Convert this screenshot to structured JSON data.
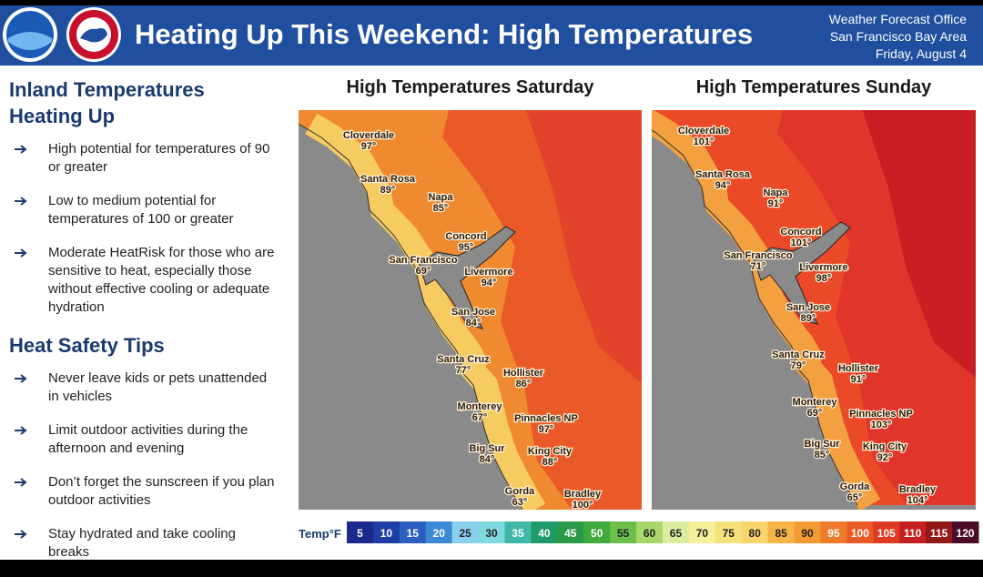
{
  "header": {
    "title": "Heating Up This Weekend: High Temperatures",
    "office": [
      "Weather Forecast Office",
      "San Francisco Bay Area",
      "Friday, August 4"
    ]
  },
  "sections": [
    {
      "heading": "Inland Temperatures Heating Up",
      "bullets": [
        "High potential for temperatures of 90 or greater",
        "Low to medium potential for temperatures of 100 or greater",
        "Moderate HeatRisk for those who are sensitive to heat, especially those without effective cooling or adequate hydration"
      ]
    },
    {
      "heading": "Heat Safety Tips",
      "bullets": [
        "Never leave kids or pets unattended in vehicles",
        "Limit outdoor activities during the afternoon and evening",
        "Don’t forget the sunscreen if you plan outdoor activities",
        "Stay hydrated and take cooling breaks"
      ]
    }
  ],
  "maps": [
    {
      "title": "High Temperatures Saturday",
      "cities": [
        {
          "name": "Cloverdale",
          "temp": "97°"
        },
        {
          "name": "Santa Rosa",
          "temp": "89°"
        },
        {
          "name": "Napa",
          "temp": "85°"
        },
        {
          "name": "Concord",
          "temp": "95°"
        },
        {
          "name": "San Francisco",
          "temp": "69°"
        },
        {
          "name": "Livermore",
          "temp": "94°"
        },
        {
          "name": "San Jose",
          "temp": "84°"
        },
        {
          "name": "Santa Cruz",
          "temp": "77°"
        },
        {
          "name": "Hollister",
          "temp": "86°"
        },
        {
          "name": "Monterey",
          "temp": "67°"
        },
        {
          "name": "Pinnacles NP",
          "temp": "97°"
        },
        {
          "name": "Big Sur",
          "temp": "84°"
        },
        {
          "name": "King City",
          "temp": "88°"
        },
        {
          "name": "Gorda",
          "temp": "63°"
        },
        {
          "name": "Bradley",
          "temp": "100°"
        }
      ]
    },
    {
      "title": "High Temperatures Sunday",
      "cities": [
        {
          "name": "Cloverdale",
          "temp": "101°"
        },
        {
          "name": "Santa Rosa",
          "temp": "94°"
        },
        {
          "name": "Napa",
          "temp": "91°"
        },
        {
          "name": "Concord",
          "temp": "101°"
        },
        {
          "name": "San Francisco",
          "temp": "71°"
        },
        {
          "name": "Livermore",
          "temp": "98°"
        },
        {
          "name": "San Jose",
          "temp": "89°"
        },
        {
          "name": "Santa Cruz",
          "temp": "79°"
        },
        {
          "name": "Hollister",
          "temp": "91°"
        },
        {
          "name": "Monterey",
          "temp": "69°"
        },
        {
          "name": "Pinnacles NP",
          "temp": "103°"
        },
        {
          "name": "Big Sur",
          "temp": "85°"
        },
        {
          "name": "King City",
          "temp": "92°"
        },
        {
          "name": "Gorda",
          "temp": "65°"
        },
        {
          "name": "Bradley",
          "temp": "104°"
        }
      ]
    }
  ],
  "legend": {
    "label": "Temp°F",
    "items": [
      {
        "value": 5,
        "color": "#1b2a8c"
      },
      {
        "value": 10,
        "color": "#1e3ea6"
      },
      {
        "value": 15,
        "color": "#2a5fc0"
      },
      {
        "value": 20,
        "color": "#3c8ad6"
      },
      {
        "value": 25,
        "color": "#8ad0ee"
      },
      {
        "value": 30,
        "color": "#7ed8e0"
      },
      {
        "value": 35,
        "color": "#3fb8a8"
      },
      {
        "value": 40,
        "color": "#1f9a6a"
      },
      {
        "value": 45,
        "color": "#2a9a48"
      },
      {
        "value": 50,
        "color": "#3eab3c"
      },
      {
        "value": 55,
        "color": "#6cc04a"
      },
      {
        "value": 60,
        "color": "#a8d86a"
      },
      {
        "value": 65,
        "color": "#dbeca0"
      },
      {
        "value": 70,
        "color": "#f4f09a"
      },
      {
        "value": 75,
        "color": "#f6e27a"
      },
      {
        "value": 80,
        "color": "#f8d46a"
      },
      {
        "value": 85,
        "color": "#f6b446"
      },
      {
        "value": 90,
        "color": "#f39a34"
      },
      {
        "value": 95,
        "color": "#ef7a2a"
      },
      {
        "value": 100,
        "color": "#e85a26"
      },
      {
        "value": 105,
        "color": "#de3a24"
      },
      {
        "value": 110,
        "color": "#c42020"
      },
      {
        "value": 115,
        "color": "#931818"
      },
      {
        "value": 120,
        "color": "#4a0c28"
      }
    ]
  }
}
